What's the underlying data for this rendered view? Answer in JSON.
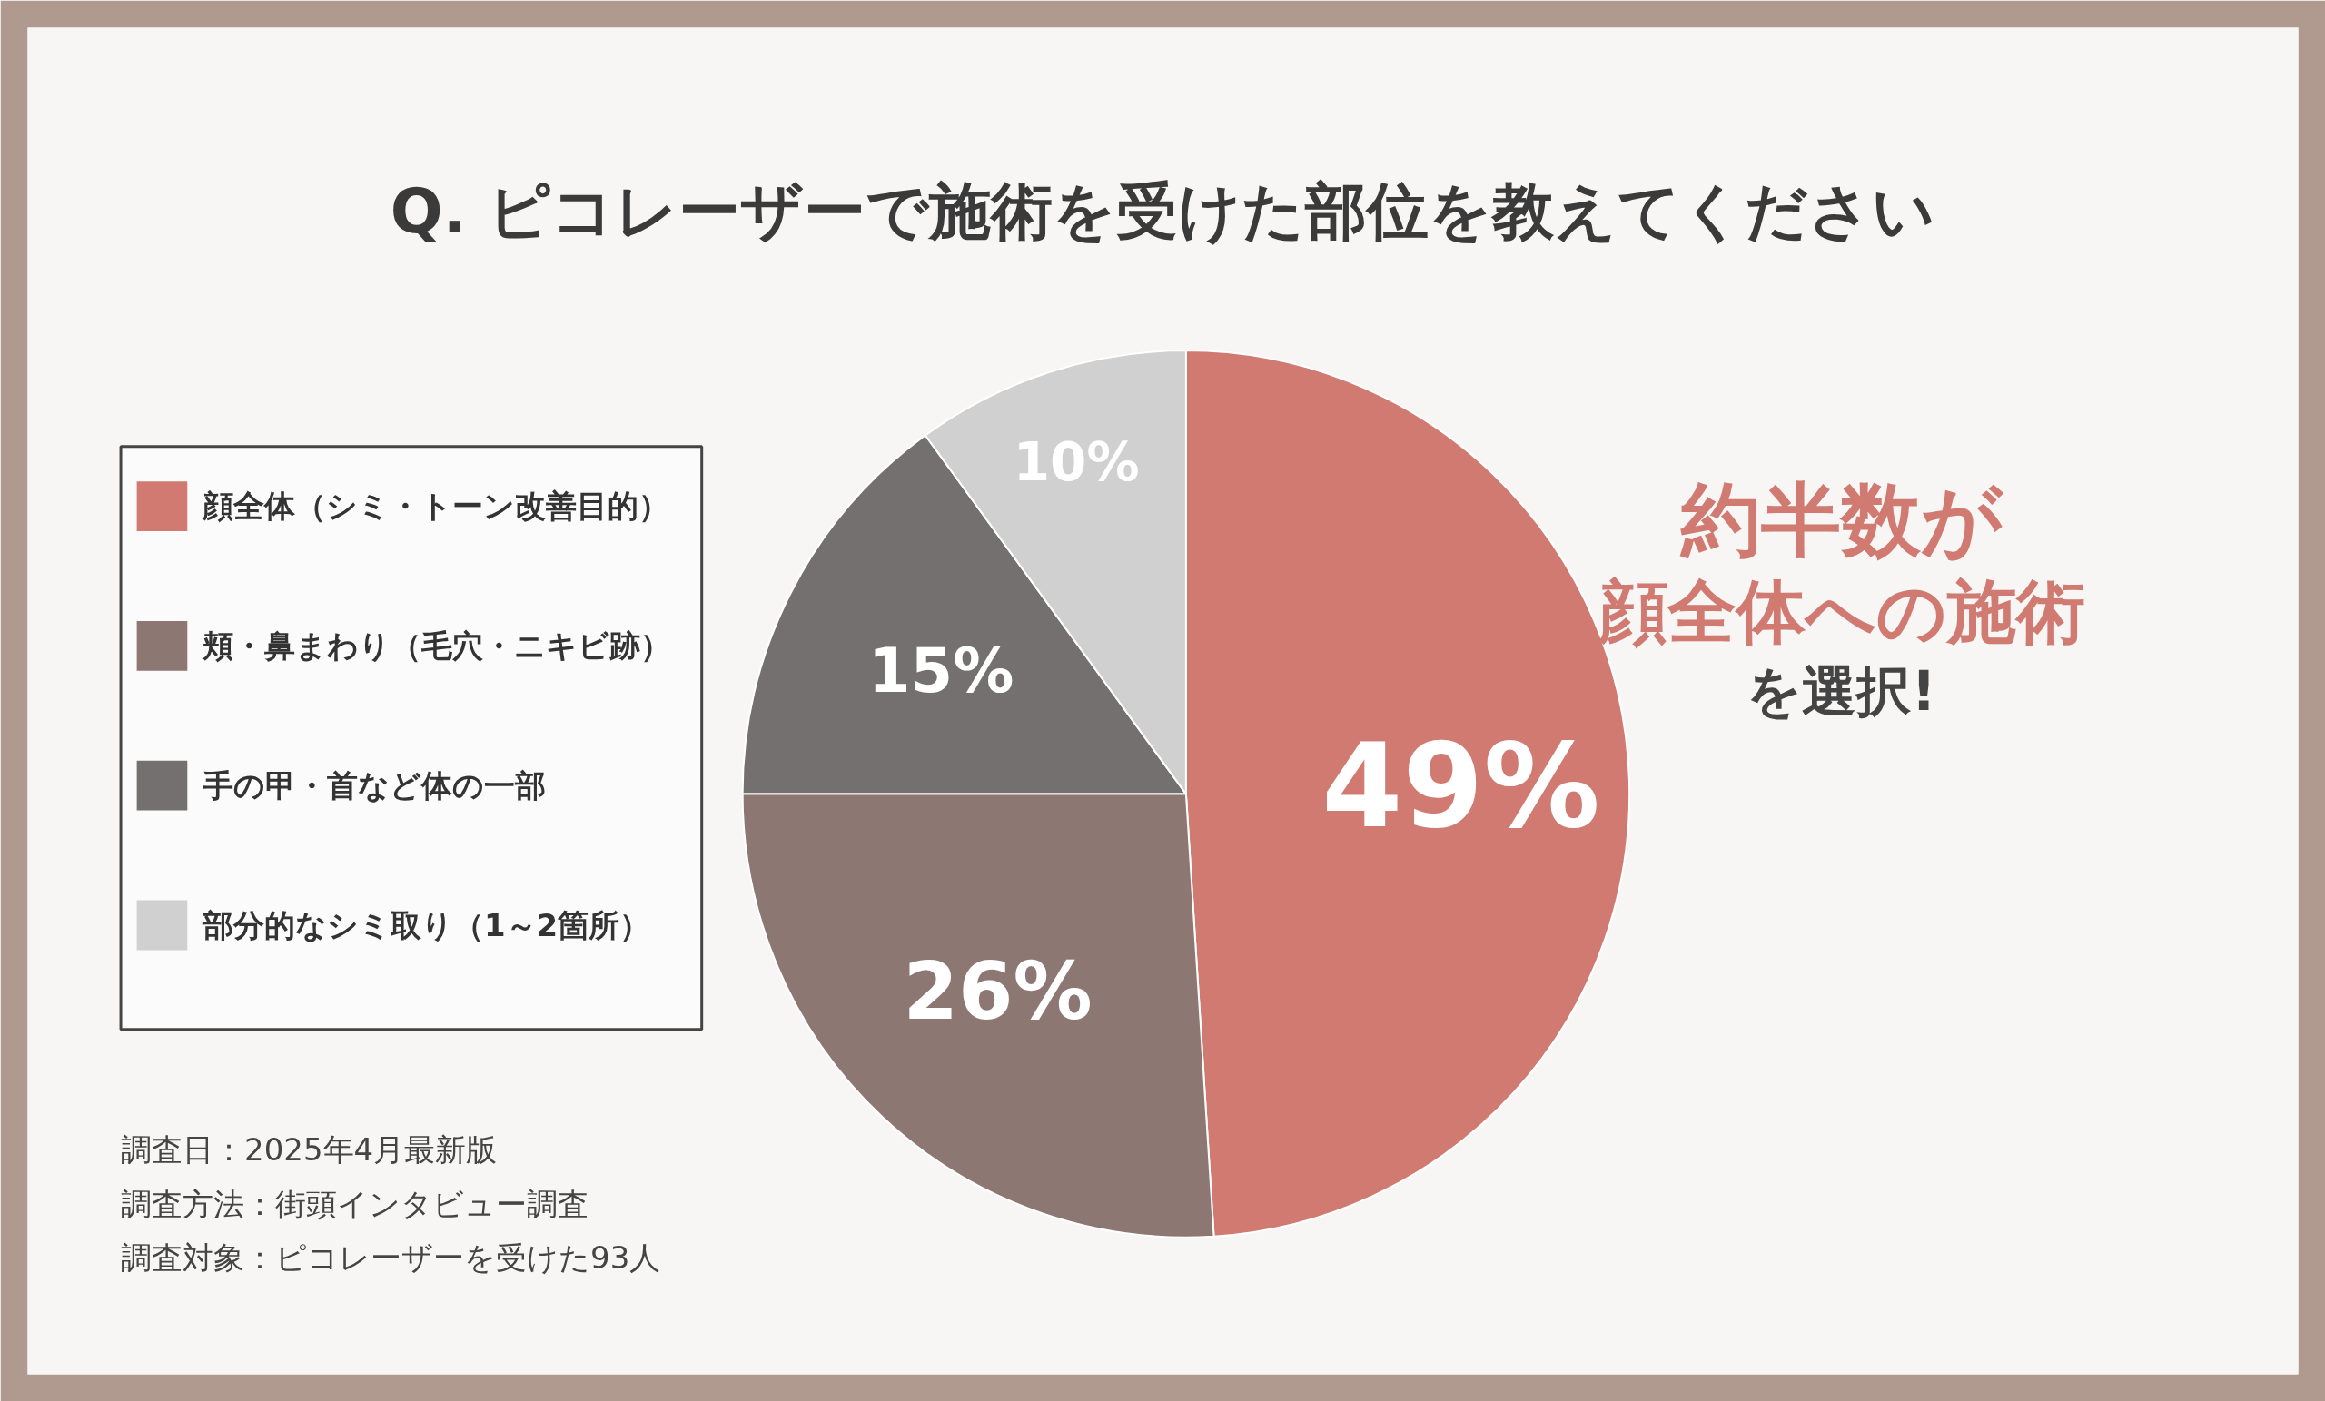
{
  "chart_data": {
    "type": "pie",
    "title": "Q. ピコレーザーで施術を受けた部位を教えてください",
    "categories": [
      "顔全体（シミ・トーン改善目的）",
      "頬・鼻まわり（毛穴・ニキビ跡）",
      "手の甲・首など体の一部",
      "部分的なシミ取り（1～2箇所）"
    ],
    "values": [
      49,
      26,
      15,
      10
    ],
    "colors": [
      "#d07a72",
      "#8c7773",
      "#757070",
      "#d0d0d0"
    ],
    "value_labels": [
      "49%",
      "26%",
      "15%",
      "10%"
    ],
    "legend": "left",
    "annotations": [
      "約半数が",
      "顔全体への施術",
      "を選択!",
      "調査日：2025年4月最新版",
      "調査方法：街頭インタビュー調査",
      "調査対象：ピコレーザーを受けた93人"
    ]
  }
}
